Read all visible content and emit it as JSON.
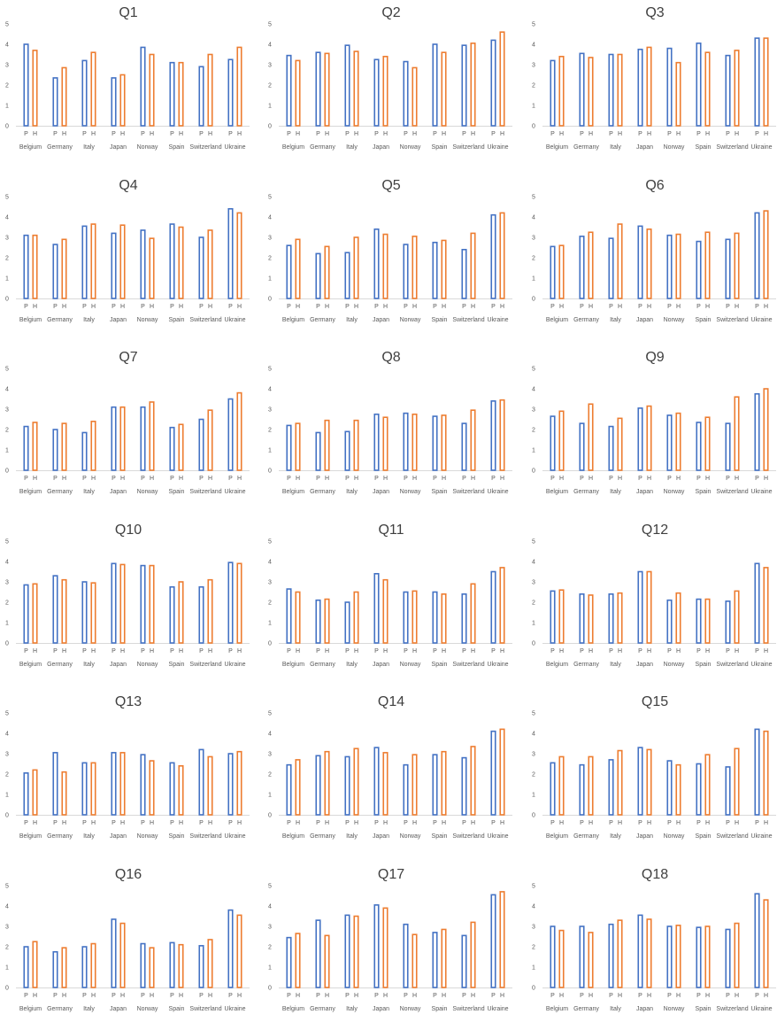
{
  "colors": {
    "P": "#4472c4",
    "H": "#ed7d31"
  },
  "chart_data": [
    {
      "type": "bar",
      "title": "Q1",
      "ylim": [
        0,
        5
      ],
      "yticks": [
        "0",
        "1",
        "2",
        "3",
        "4",
        "5"
      ],
      "grid": false,
      "categories": [
        "Belgium",
        "Germany",
        "Italy",
        "Japan",
        "Norway",
        "Spain",
        "Switzerland",
        "Ukraine"
      ],
      "bar_labels": [
        "P",
        "H"
      ],
      "series": [
        {
          "values": [
            4.0,
            2.35,
            3.2,
            2.35,
            3.85,
            3.1,
            2.9,
            3.25
          ]
        },
        {
          "values": [
            3.7,
            2.85,
            3.6,
            2.5,
            3.5,
            3.1,
            3.5,
            3.85
          ]
        }
      ]
    },
    {
      "type": "bar",
      "title": "Q2",
      "ylim": [
        0,
        5
      ],
      "yticks": [
        "0",
        "1",
        "2",
        "3",
        "4",
        "5"
      ],
      "grid": false,
      "categories": [
        "Belgium",
        "Germany",
        "Italy",
        "Japan",
        "Norway",
        "Spain",
        "Switzerland",
        "Ukraine"
      ],
      "bar_labels": [
        "P",
        "H"
      ],
      "series": [
        {
          "values": [
            3.45,
            3.6,
            3.95,
            3.25,
            3.15,
            4.0,
            3.95,
            4.2
          ]
        },
        {
          "values": [
            3.2,
            3.55,
            3.65,
            3.4,
            2.85,
            3.6,
            4.05,
            4.6
          ]
        }
      ]
    },
    {
      "type": "bar",
      "title": "Q3",
      "ylim": [
        0,
        5
      ],
      "yticks": [
        "0",
        "1",
        "2",
        "3",
        "4",
        "5"
      ],
      "grid": false,
      "categories": [
        "Belgium",
        "Germany",
        "Italy",
        "Japan",
        "Norway",
        "Spain",
        "Switzerland",
        "Ukraine"
      ],
      "bar_labels": [
        "P",
        "H"
      ],
      "series": [
        {
          "values": [
            3.2,
            3.55,
            3.5,
            3.75,
            3.8,
            4.05,
            3.45,
            4.3
          ]
        },
        {
          "values": [
            3.4,
            3.35,
            3.5,
            3.85,
            3.1,
            3.6,
            3.7,
            4.3
          ]
        }
      ]
    },
    {
      "type": "bar",
      "title": "Q4",
      "ylim": [
        0,
        5
      ],
      "yticks": [
        "0",
        "1",
        "2",
        "3",
        "4",
        "5"
      ],
      "grid": false,
      "categories": [
        "Belgium",
        "Germany",
        "Italy",
        "Japan",
        "Norway",
        "Spain",
        "Switzerland",
        "Ukraine"
      ],
      "bar_labels": [
        "P",
        "H"
      ],
      "series": [
        {
          "values": [
            3.1,
            2.65,
            3.55,
            3.2,
            3.35,
            3.65,
            3.0,
            4.4
          ]
        },
        {
          "values": [
            3.1,
            2.9,
            3.65,
            3.6,
            2.95,
            3.5,
            3.35,
            4.2
          ]
        }
      ]
    },
    {
      "type": "bar",
      "title": "Q5",
      "ylim": [
        0,
        5
      ],
      "yticks": [
        "0",
        "1",
        "2",
        "3",
        "4",
        "5"
      ],
      "grid": false,
      "categories": [
        "Belgium",
        "Germany",
        "Italy",
        "Japan",
        "Norway",
        "Spain",
        "Switzerland",
        "Ukraine"
      ],
      "bar_labels": [
        "P",
        "H"
      ],
      "series": [
        {
          "values": [
            2.6,
            2.2,
            2.25,
            3.4,
            2.65,
            2.75,
            2.4,
            4.1
          ]
        },
        {
          "values": [
            2.9,
            2.55,
            3.0,
            3.15,
            3.05,
            2.85,
            3.2,
            4.2
          ]
        }
      ]
    },
    {
      "type": "bar",
      "title": "Q6",
      "ylim": [
        0,
        5
      ],
      "yticks": [
        "0",
        "1",
        "2",
        "3",
        "4",
        "5"
      ],
      "grid": false,
      "categories": [
        "Belgium",
        "Germany",
        "Italy",
        "Japan",
        "Norway",
        "Spain",
        "Switzerland",
        "Ukraine"
      ],
      "bar_labels": [
        "P",
        "H"
      ],
      "series": [
        {
          "values": [
            2.55,
            3.05,
            2.95,
            3.55,
            3.1,
            2.8,
            2.9,
            4.2
          ]
        },
        {
          "values": [
            2.6,
            3.25,
            3.65,
            3.4,
            3.15,
            3.25,
            3.2,
            4.3
          ]
        }
      ]
    },
    {
      "type": "bar",
      "title": "Q7",
      "ylim": [
        0,
        5
      ],
      "yticks": [
        "0",
        "1",
        "2",
        "3",
        "4",
        "5"
      ],
      "grid": false,
      "categories": [
        "Belgium",
        "Germany",
        "Italy",
        "Japan",
        "Norway",
        "Spain",
        "Switzerland",
        "Ukraine"
      ],
      "bar_labels": [
        "P",
        "H"
      ],
      "series": [
        {
          "values": [
            2.15,
            2.0,
            1.85,
            3.1,
            3.1,
            2.1,
            2.5,
            3.5
          ]
        },
        {
          "values": [
            2.35,
            2.3,
            2.4,
            3.1,
            3.35,
            2.25,
            2.95,
            3.8
          ]
        }
      ]
    },
    {
      "type": "bar",
      "title": "Q8",
      "ylim": [
        0,
        5
      ],
      "yticks": [
        "0",
        "1",
        "2",
        "3",
        "4",
        "5"
      ],
      "grid": false,
      "categories": [
        "Belgium",
        "Germany",
        "Italy",
        "Japan",
        "Norway",
        "Spain",
        "Switzerland",
        "Ukraine"
      ],
      "bar_labels": [
        "P",
        "H"
      ],
      "series": [
        {
          "values": [
            2.2,
            1.85,
            1.9,
            2.75,
            2.8,
            2.65,
            2.3,
            3.4
          ]
        },
        {
          "values": [
            2.3,
            2.45,
            2.45,
            2.6,
            2.75,
            2.7,
            2.95,
            3.45
          ]
        }
      ]
    },
    {
      "type": "bar",
      "title": "Q9",
      "ylim": [
        0,
        5
      ],
      "yticks": [
        "0",
        "1",
        "2",
        "3",
        "4",
        "5"
      ],
      "grid": false,
      "categories": [
        "Belgium",
        "Germany",
        "Italy",
        "Japan",
        "Norway",
        "Spain",
        "Switzerland",
        "Ukraine"
      ],
      "bar_labels": [
        "P",
        "H"
      ],
      "series": [
        {
          "values": [
            2.65,
            2.3,
            2.15,
            3.05,
            2.7,
            2.35,
            2.3,
            3.75
          ]
        },
        {
          "values": [
            2.9,
            3.25,
            2.55,
            3.15,
            2.8,
            2.6,
            3.6,
            4.0
          ]
        }
      ]
    },
    {
      "type": "bar",
      "title": "Q10",
      "ylim": [
        0,
        5
      ],
      "yticks": [
        "0",
        "1",
        "2",
        "3",
        "4",
        "5"
      ],
      "grid": false,
      "categories": [
        "Belgium",
        "Germany",
        "Italy",
        "Japan",
        "Norway",
        "Spain",
        "Switzerland",
        "Ukraine"
      ],
      "bar_labels": [
        "P",
        "H"
      ],
      "series": [
        {
          "values": [
            2.85,
            3.3,
            3.0,
            3.9,
            3.8,
            2.75,
            2.75,
            3.95
          ]
        },
        {
          "values": [
            2.9,
            3.1,
            2.95,
            3.85,
            3.8,
            3.0,
            3.1,
            3.9
          ]
        }
      ]
    },
    {
      "type": "bar",
      "title": "Q11",
      "ylim": [
        0,
        5
      ],
      "yticks": [
        "0",
        "1",
        "2",
        "3",
        "4",
        "5"
      ],
      "grid": false,
      "categories": [
        "Belgium",
        "Germany",
        "Italy",
        "Japan",
        "Norway",
        "Spain",
        "Switzerland",
        "Ukraine"
      ],
      "bar_labels": [
        "P",
        "H"
      ],
      "series": [
        {
          "values": [
            2.65,
            2.1,
            2.0,
            3.4,
            2.5,
            2.5,
            2.4,
            3.5
          ]
        },
        {
          "values": [
            2.5,
            2.15,
            2.5,
            3.1,
            2.55,
            2.4,
            2.9,
            3.7
          ]
        }
      ]
    },
    {
      "type": "bar",
      "title": "Q12",
      "ylim": [
        0,
        5
      ],
      "yticks": [
        "0",
        "1",
        "2",
        "3",
        "4",
        "5"
      ],
      "grid": false,
      "categories": [
        "Belgium",
        "Germany",
        "Italy",
        "Japan",
        "Norway",
        "Spain",
        "Switzerland",
        "Ukraine"
      ],
      "bar_labels": [
        "P",
        "H"
      ],
      "series": [
        {
          "values": [
            2.55,
            2.4,
            2.4,
            3.5,
            2.1,
            2.15,
            2.05,
            3.9
          ]
        },
        {
          "values": [
            2.6,
            2.35,
            2.45,
            3.5,
            2.45,
            2.15,
            2.55,
            3.7
          ]
        }
      ]
    },
    {
      "type": "bar",
      "title": "Q13",
      "ylim": [
        0,
        5
      ],
      "yticks": [
        "0",
        "1",
        "2",
        "3",
        "4",
        "5"
      ],
      "grid": false,
      "categories": [
        "Belgium",
        "Germany",
        "Italy",
        "Japan",
        "Norway",
        "Spain",
        "Switzerland",
        "Ukraine"
      ],
      "bar_labels": [
        "P",
        "H"
      ],
      "series": [
        {
          "values": [
            2.05,
            3.05,
            2.55,
            3.05,
            2.95,
            2.55,
            3.2,
            3.0
          ]
        },
        {
          "values": [
            2.2,
            2.1,
            2.55,
            3.05,
            2.65,
            2.4,
            2.85,
            3.1
          ]
        }
      ]
    },
    {
      "type": "bar",
      "title": "Q14",
      "ylim": [
        0,
        5
      ],
      "yticks": [
        "0",
        "1",
        "2",
        "3",
        "4",
        "5"
      ],
      "grid": false,
      "categories": [
        "Belgium",
        "Germany",
        "Italy",
        "Japan",
        "Norway",
        "Spain",
        "Switzerland",
        "Ukraine"
      ],
      "bar_labels": [
        "P",
        "H"
      ],
      "series": [
        {
          "values": [
            2.45,
            2.9,
            2.85,
            3.3,
            2.45,
            2.95,
            2.8,
            4.1
          ]
        },
        {
          "values": [
            2.7,
            3.1,
            3.25,
            3.05,
            2.95,
            3.1,
            3.35,
            4.2
          ]
        }
      ]
    },
    {
      "type": "bar",
      "title": "Q15",
      "ylim": [
        0,
        5
      ],
      "yticks": [
        "0",
        "1",
        "2",
        "3",
        "4",
        "5"
      ],
      "grid": false,
      "categories": [
        "Belgium",
        "Germany",
        "Italy",
        "Japan",
        "Norway",
        "Spain",
        "Switzerland",
        "Ukraine"
      ],
      "bar_labels": [
        "P",
        "H"
      ],
      "series": [
        {
          "values": [
            2.55,
            2.45,
            2.7,
            3.3,
            2.65,
            2.5,
            2.35,
            4.2
          ]
        },
        {
          "values": [
            2.85,
            2.85,
            3.15,
            3.2,
            2.45,
            2.95,
            3.25,
            4.1
          ]
        }
      ]
    },
    {
      "type": "bar",
      "title": "Q16",
      "ylim": [
        0,
        5
      ],
      "yticks": [
        "0",
        "1",
        "2",
        "3",
        "4",
        "5"
      ],
      "grid": false,
      "categories": [
        "Belgium",
        "Germany",
        "Italy",
        "Japan",
        "Norway",
        "Spain",
        "Switzerland",
        "Ukraine"
      ],
      "bar_labels": [
        "P",
        "H"
      ],
      "series": [
        {
          "values": [
            2.0,
            1.75,
            2.0,
            3.35,
            2.15,
            2.2,
            2.05,
            3.8
          ]
        },
        {
          "values": [
            2.25,
            1.95,
            2.15,
            3.15,
            1.95,
            2.1,
            2.35,
            3.55
          ]
        }
      ]
    },
    {
      "type": "bar",
      "title": "Q17",
      "ylim": [
        0,
        5
      ],
      "yticks": [
        "0",
        "1",
        "2",
        "3",
        "4",
        "5"
      ],
      "grid": false,
      "categories": [
        "Belgium",
        "Germany",
        "Italy",
        "Japan",
        "Norway",
        "Spain",
        "Switzerland",
        "Ukraine"
      ],
      "bar_labels": [
        "P",
        "H"
      ],
      "series": [
        {
          "values": [
            2.45,
            3.3,
            3.55,
            4.05,
            3.1,
            2.7,
            2.55,
            4.55
          ]
        },
        {
          "values": [
            2.65,
            2.55,
            3.5,
            3.9,
            2.6,
            2.85,
            3.2,
            4.7
          ]
        }
      ]
    },
    {
      "type": "bar",
      "title": "Q18",
      "ylim": [
        0,
        5
      ],
      "yticks": [
        "0",
        "1",
        "2",
        "3",
        "4",
        "5"
      ],
      "grid": false,
      "categories": [
        "Belgium",
        "Germany",
        "Italy",
        "Japan",
        "Norway",
        "Spain",
        "Switzerland",
        "Ukraine"
      ],
      "bar_labels": [
        "P",
        "H"
      ],
      "series": [
        {
          "values": [
            3.0,
            3.0,
            3.1,
            3.55,
            3.0,
            2.95,
            2.85,
            4.6
          ]
        },
        {
          "values": [
            2.8,
            2.7,
            3.3,
            3.35,
            3.05,
            3.0,
            3.15,
            4.3
          ]
        }
      ]
    }
  ]
}
